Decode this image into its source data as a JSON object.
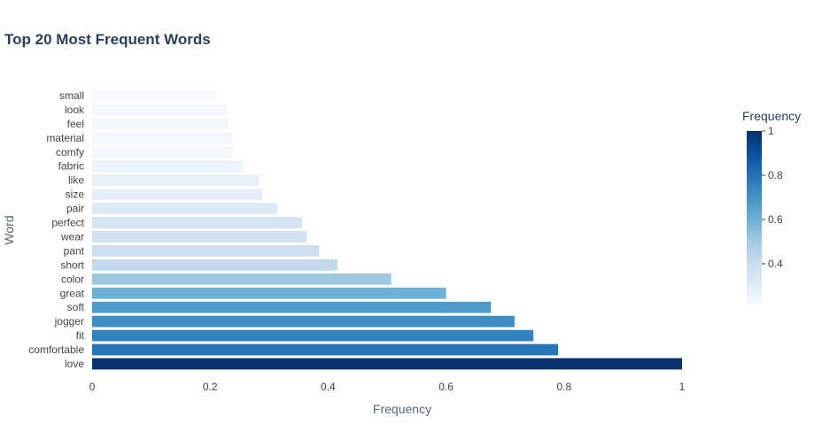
{
  "chart_data": {
    "type": "bar",
    "orientation": "horizontal",
    "title": "Top 20 Most Frequent Words",
    "xlabel": "Frequency",
    "ylabel": "Word",
    "xlim": [
      0,
      1
    ],
    "xticks": [
      "0",
      "0.2",
      "0.4",
      "0.6",
      "0.8",
      "1"
    ],
    "categories": [
      "small",
      "look",
      "feel",
      "material",
      "comfy",
      "fabric",
      "like",
      "size",
      "pair",
      "perfect",
      "wear",
      "pant",
      "short",
      "color",
      "great",
      "soft",
      "jogger",
      "fit",
      "comfortable",
      "love"
    ],
    "values": [
      0.212,
      0.228,
      0.231,
      0.238,
      0.238,
      0.256,
      0.282,
      0.288,
      0.314,
      0.356,
      0.364,
      0.385,
      0.416,
      0.507,
      0.6,
      0.676,
      0.716,
      0.748,
      0.79,
      1.0
    ],
    "grid": false,
    "colorscale": "Blues",
    "colorbar": {
      "title": "Frequency",
      "range": [
        0.212,
        1.0
      ],
      "ticks": [
        "0.4",
        "0.6",
        "0.8",
        "1"
      ]
    },
    "colors": {
      "text": "#2a3f5f",
      "tick_text": "#444444",
      "axis_title": "#506784",
      "background": "#ffffff"
    }
  }
}
